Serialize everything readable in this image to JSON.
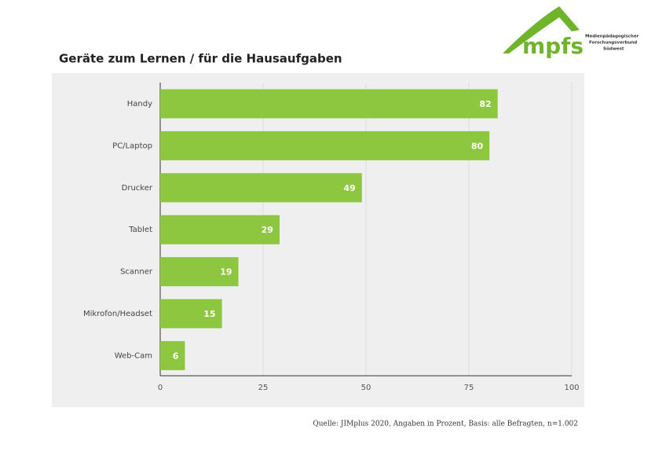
{
  "chart_data": {
    "type": "bar",
    "orientation": "horizontal",
    "title": "Geräte zum Lernen / für die Hausaufgaben",
    "categories": [
      "Handy",
      "PC/Laptop",
      "Drucker",
      "Tablet",
      "Scanner",
      "Mikrofon/Headset",
      "Web-Cam"
    ],
    "values": [
      82,
      80,
      49,
      29,
      19,
      15,
      6
    ],
    "color": "#8dc63f",
    "xlim": [
      0,
      100
    ],
    "xticks": [
      0,
      25,
      50,
      75,
      100
    ],
    "grid": true,
    "source": "Quelle: JIMplus 2020, Angaben in Prozent, Basis: alle Befragten, n=1.002",
    "logo": {
      "name": "mpfs",
      "lines": [
        "Medienpädagogischer",
        "Forschungsverbund",
        "Südwest"
      ]
    }
  }
}
